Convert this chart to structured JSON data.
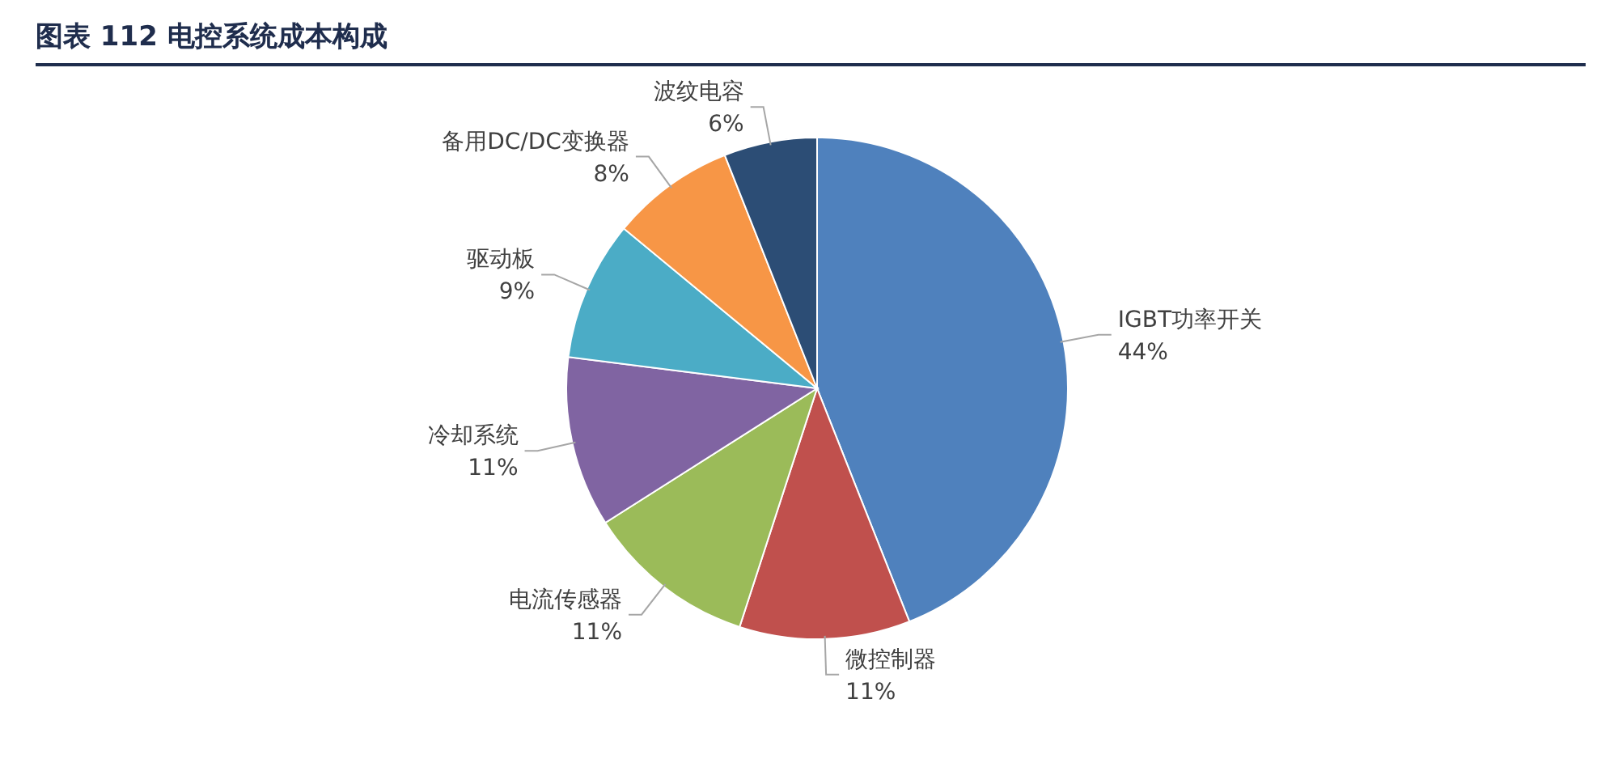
{
  "chart_data": {
    "type": "pie",
    "title": "图表 112 电控系统成本构成",
    "categories": [
      "IGBT功率开关",
      "微控制器",
      "电流传感器",
      "冷却系统",
      "驱动板",
      "备用DC/DC变换器",
      "波纹电容"
    ],
    "values": [
      44,
      11,
      11,
      11,
      9,
      8,
      6
    ],
    "colors": [
      "#4f81bd",
      "#c0504d",
      "#9bbb59",
      "#8064a2",
      "#4bacc6",
      "#f79646",
      "#2c4d75"
    ],
    "value_labels": [
      "44%",
      "11%",
      "11%",
      "11%",
      "9%",
      "8%",
      "6%"
    ]
  }
}
